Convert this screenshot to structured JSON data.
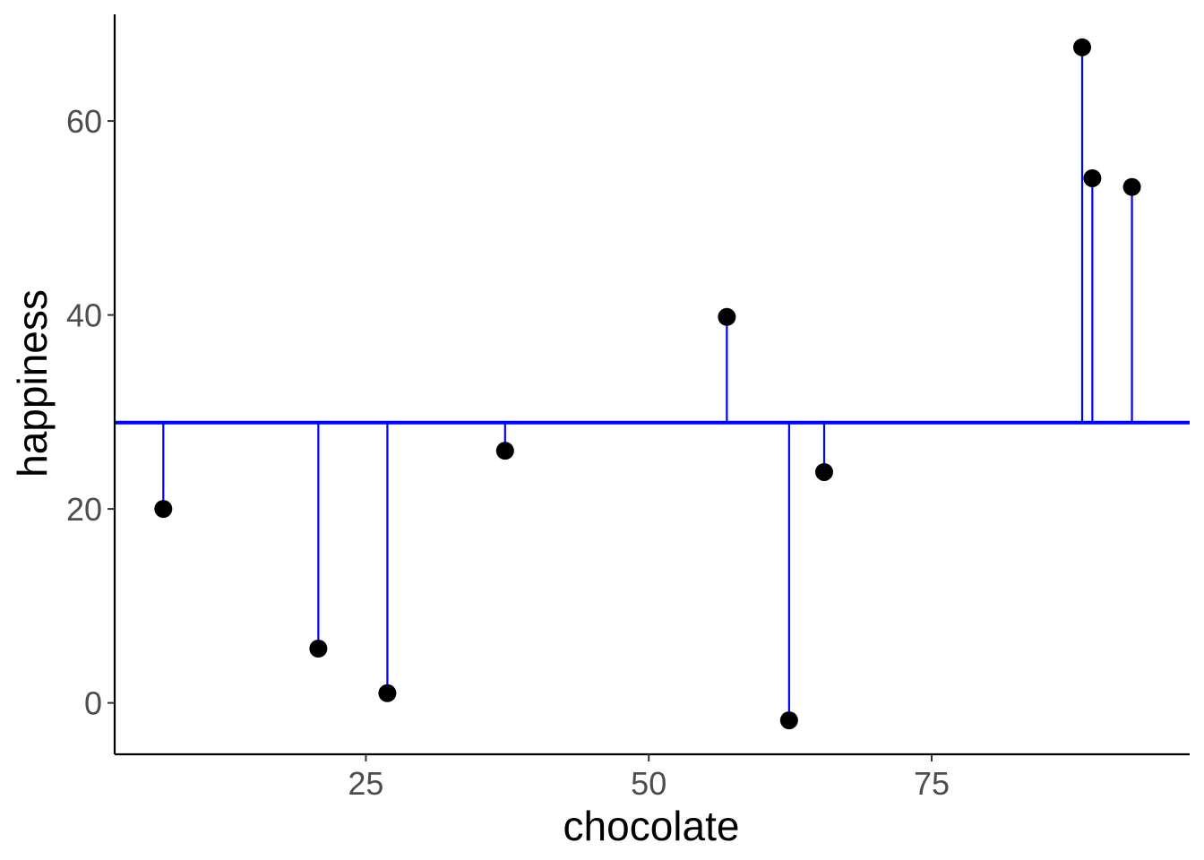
{
  "chart_data": {
    "type": "scatter",
    "title": "",
    "xlabel": "chocolate",
    "ylabel": "happiness",
    "xlim": [
      2.8,
      97.8
    ],
    "ylim": [
      -5.3,
      71.0
    ],
    "x_ticks": [
      25,
      50,
      75
    ],
    "y_ticks": [
      0,
      20,
      40,
      60
    ],
    "x_tick_labels": [
      "25",
      "50",
      "75"
    ],
    "y_tick_labels": [
      "0",
      "20",
      "40",
      "60"
    ],
    "grid": false,
    "legend": "none",
    "mean_line": {
      "y": 28.9,
      "color": "#0000ff"
    },
    "residual_color": "#0000ff",
    "point_color": "#000000",
    "points": [
      {
        "x": 7.1,
        "y": 20.0
      },
      {
        "x": 20.8,
        "y": 5.6
      },
      {
        "x": 26.9,
        "y": 1.0
      },
      {
        "x": 37.3,
        "y": 26.0
      },
      {
        "x": 56.9,
        "y": 39.8
      },
      {
        "x": 62.4,
        "y": -1.8
      },
      {
        "x": 65.5,
        "y": 23.8
      },
      {
        "x": 88.3,
        "y": 67.6
      },
      {
        "x": 89.2,
        "y": 54.1
      },
      {
        "x": 92.7,
        "y": 53.2
      }
    ]
  }
}
